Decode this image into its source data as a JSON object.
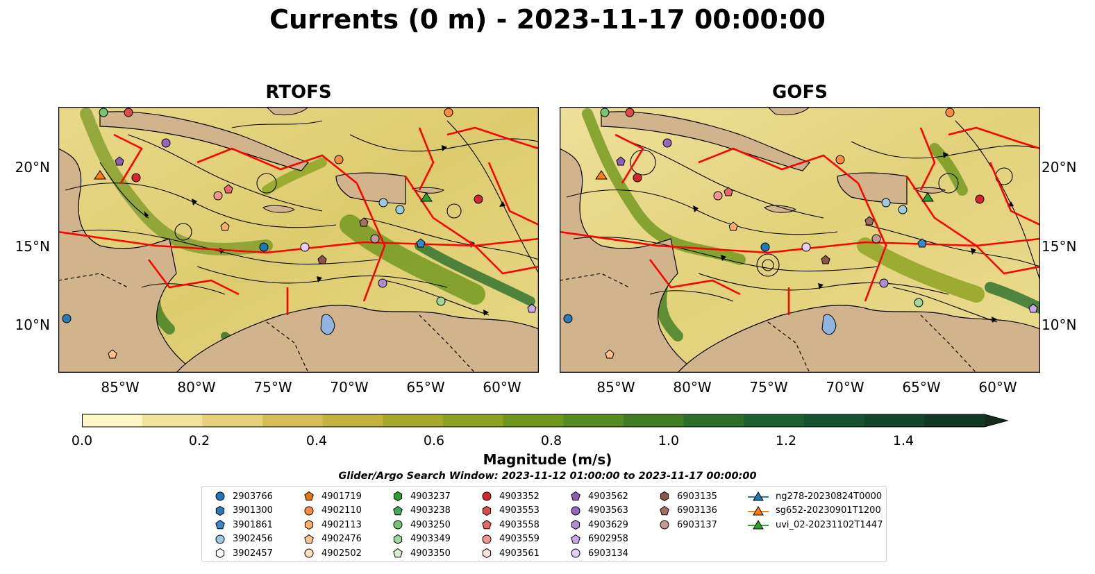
{
  "title": "Currents (0 m) - 2023-11-17 00:00:00",
  "panels": [
    {
      "title": "RTOFS"
    },
    {
      "title": "GOFS"
    }
  ],
  "lat_ticks": [
    "20°N",
    "15°N",
    "10°N"
  ],
  "lon_ticks": [
    "85°W",
    "80°W",
    "75°W",
    "70°W",
    "65°W",
    "60°W"
  ],
  "colorbar": {
    "label": "Magnitude (m/s)",
    "ticks": [
      "0.0",
      "0.2",
      "0.4",
      "0.6",
      "0.8",
      "1.0",
      "1.2",
      "1.4"
    ],
    "range": [
      0,
      1.5
    ],
    "colors": [
      "#fdf7c3",
      "#f2e39a",
      "#e6d07a",
      "#d6bd58",
      "#c4b23f",
      "#a6a82c",
      "#8ba11f",
      "#6f961c",
      "#56891f",
      "#3f7c22",
      "#2a6e2a",
      "#1d6030",
      "#155330",
      "#13452a",
      "#123824",
      "#152b1c"
    ]
  },
  "search_window": "Glider/Argo Search Window: 2023-11-12 01:00:00 to 2023-11-17 00:00:00",
  "legend": [
    {
      "label": "2903766",
      "shape": "circle",
      "color": "#1f77b4"
    },
    {
      "label": "3901300",
      "shape": "hexagon",
      "color": "#2b7bba"
    },
    {
      "label": "3901861",
      "shape": "pentagon",
      "color": "#3a86c8"
    },
    {
      "label": "3902456",
      "shape": "circle",
      "color": "#9ecae1"
    },
    {
      "label": "3902457",
      "shape": "hexagon",
      "color": "#ffffff"
    },
    {
      "label": "4901719",
      "shape": "pentagon",
      "color": "#e6750d"
    },
    {
      "label": "4902110",
      "shape": "circle",
      "color": "#fd8d3c"
    },
    {
      "label": "4902113",
      "shape": "hexagon",
      "color": "#fdae6b"
    },
    {
      "label": "4902476",
      "shape": "pentagon",
      "color": "#fdc28c"
    },
    {
      "label": "4902502",
      "shape": "circle",
      "color": "#fde0c0"
    },
    {
      "label": "4903237",
      "shape": "hexagon",
      "color": "#2ca02c"
    },
    {
      "label": "4903238",
      "shape": "pentagon",
      "color": "#41ab5d"
    },
    {
      "label": "4903250",
      "shape": "circle",
      "color": "#74c476"
    },
    {
      "label": "4903349",
      "shape": "hexagon",
      "color": "#a1d99b"
    },
    {
      "label": "4903350",
      "shape": "pentagon",
      "color": "#d4f2cc"
    },
    {
      "label": "4903352",
      "shape": "circle",
      "color": "#d62728"
    },
    {
      "label": "4903553",
      "shape": "hexagon",
      "color": "#de4a4a"
    },
    {
      "label": "4903558",
      "shape": "pentagon",
      "color": "#e66a6a"
    },
    {
      "label": "4903559",
      "shape": "circle",
      "color": "#f0988f"
    },
    {
      "label": "4903561",
      "shape": "hexagon",
      "color": "#fde0dd"
    },
    {
      "label": "4903562",
      "shape": "pentagon",
      "color": "#8e5fb6"
    },
    {
      "label": "4903563",
      "shape": "circle",
      "color": "#9467bd"
    },
    {
      "label": "4903629",
      "shape": "hexagon",
      "color": "#b08cd6"
    },
    {
      "label": "6902958",
      "shape": "pentagon",
      "color": "#c9a7ee"
    },
    {
      "label": "6903134",
      "shape": "circle",
      "color": "#e8cdf7"
    },
    {
      "label": "6903135",
      "shape": "hexagon",
      "color": "#8c564b"
    },
    {
      "label": "6903136",
      "shape": "pentagon",
      "color": "#a0725f"
    },
    {
      "label": "6903137",
      "shape": "circle",
      "color": "#c49c94"
    },
    {
      "label": "ng278-20230824T0000",
      "shape": "triangle-line",
      "color": "#1f77b4"
    },
    {
      "label": "sg652-20230901T1200",
      "shape": "triangle-line",
      "color": "#ff7f0e"
    },
    {
      "label": "uvi_02-20231102T1447",
      "shape": "triangle-line",
      "color": "#2ca02c"
    }
  ]
}
